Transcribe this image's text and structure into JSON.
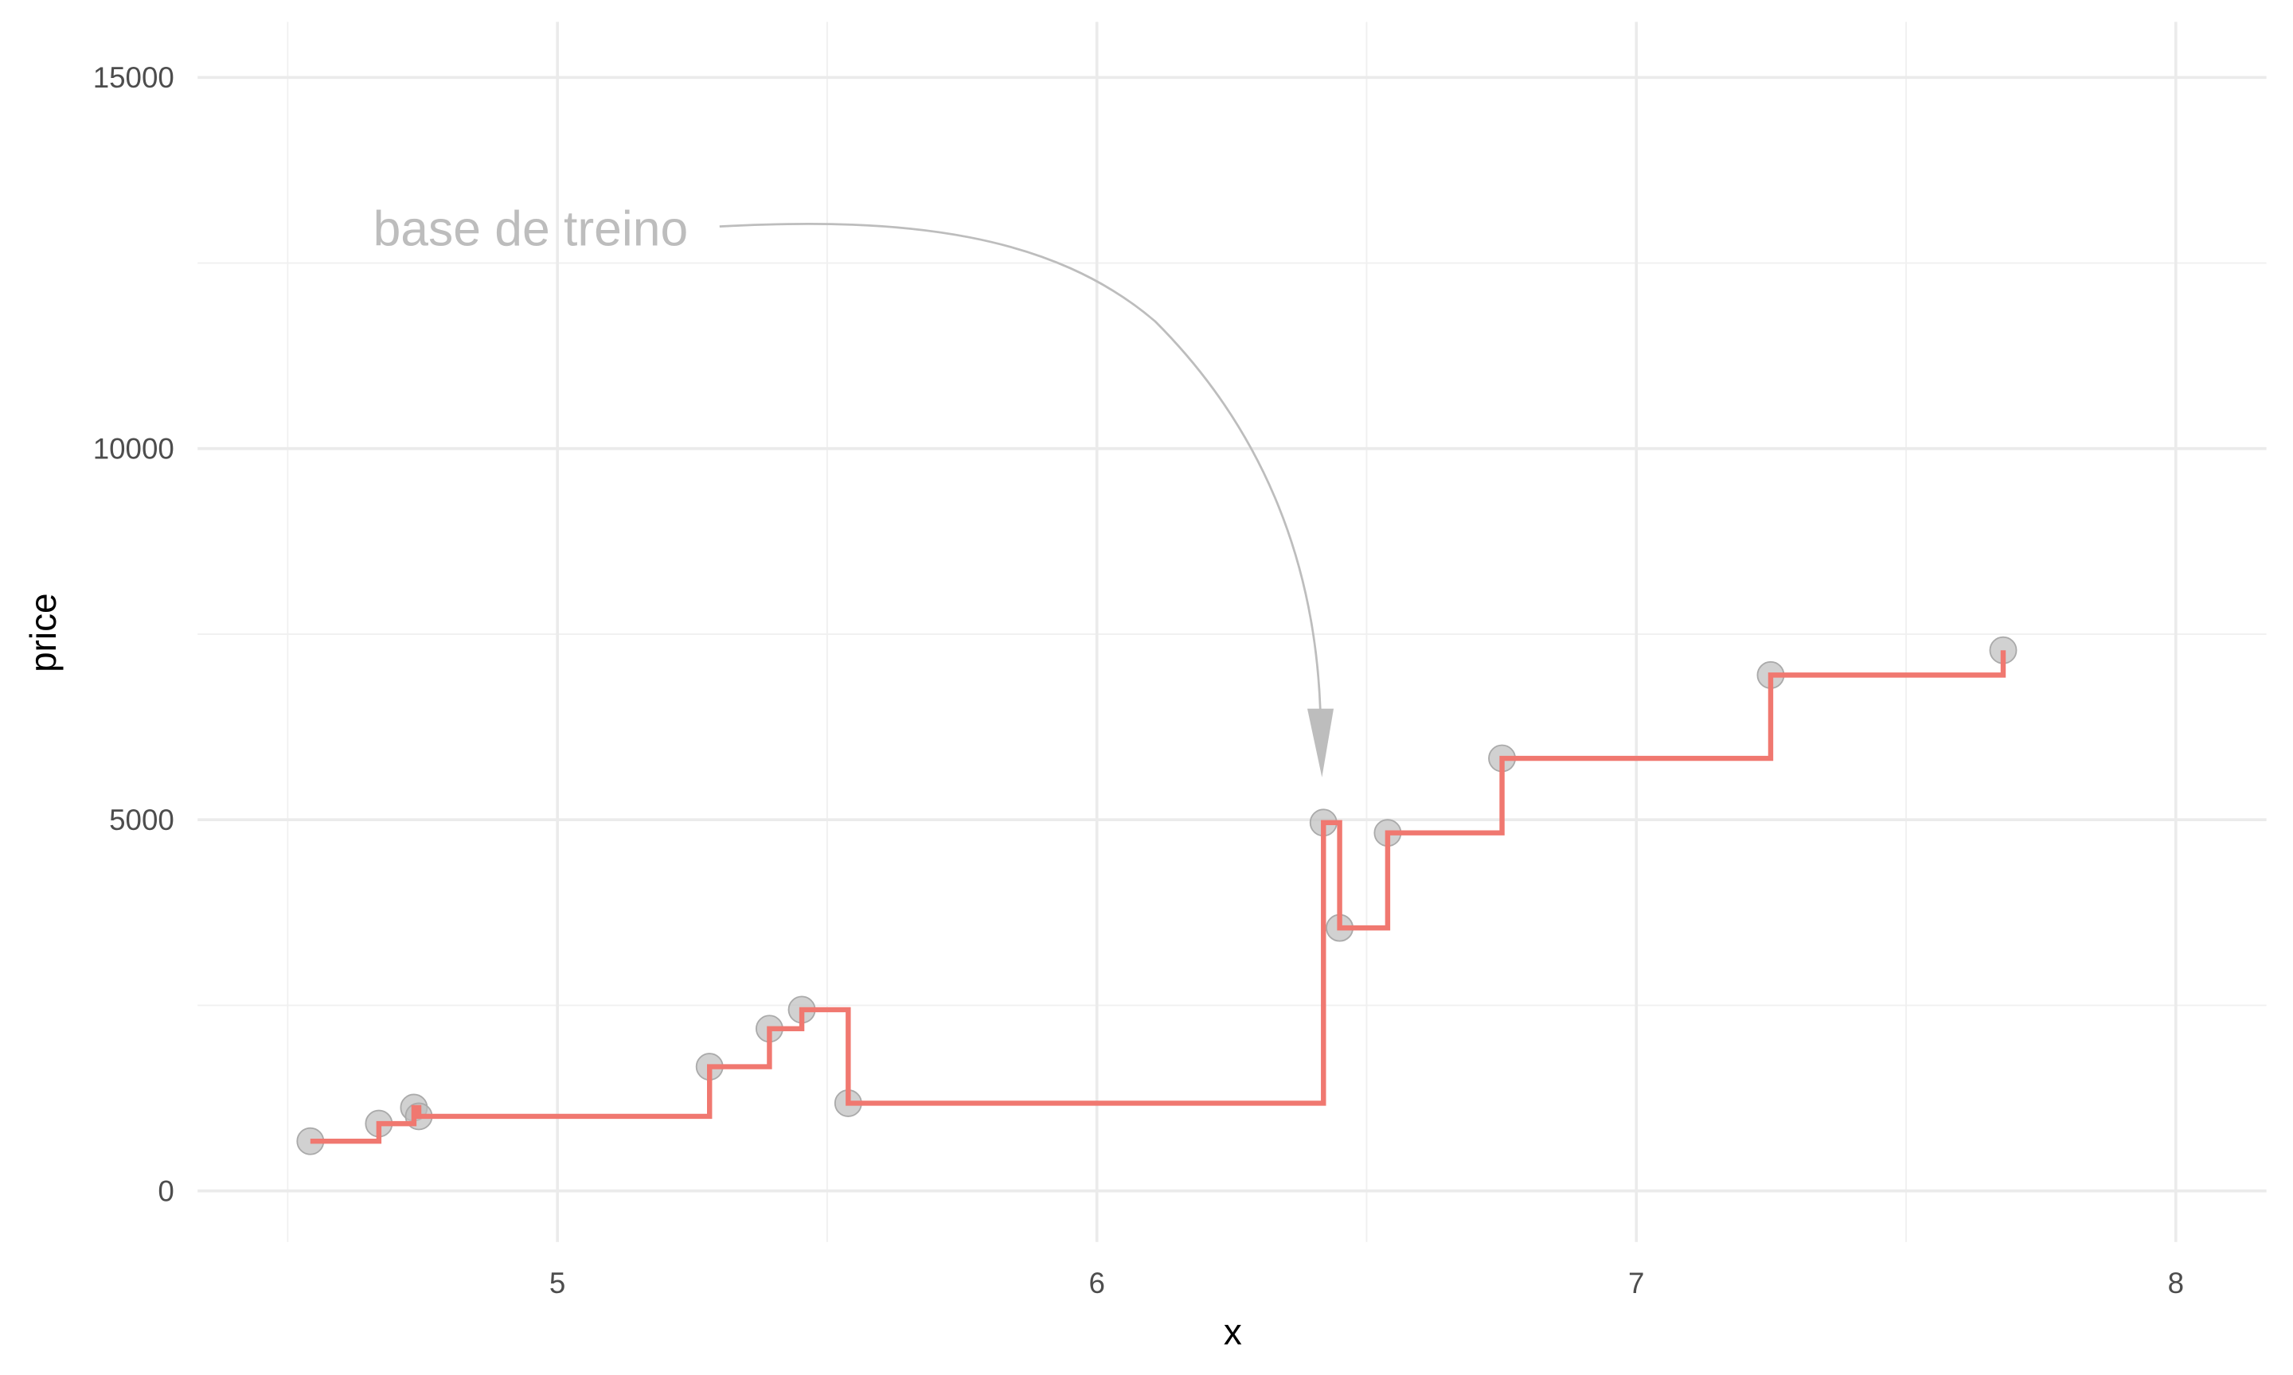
{
  "chart_data": {
    "type": "scatter",
    "x_label": "x",
    "y_label": "price",
    "annotation": "base de treino",
    "x": [
      4.542,
      4.669,
      4.734,
      4.743,
      5.282,
      5.393,
      5.453,
      5.539,
      6.42,
      6.45,
      6.539,
      6.751,
      7.249,
      7.68
    ],
    "values": [
      669,
      906,
      1122,
      1004,
      1673,
      2185,
      2441,
      1181,
      4961,
      3543,
      4823,
      5827,
      6949,
      7283
    ],
    "point_color": "#bdbdbd",
    "line_color": "#f07870",
    "line": "step",
    "xlim": [
      4.333,
      8.168
    ],
    "ylim": [
      -689,
      15748
    ],
    "xticks": [
      5,
      6,
      7,
      8
    ],
    "yticks": [
      0,
      5000,
      10000,
      15000
    ],
    "xminor": [
      4.5,
      5.5,
      6.5,
      7.5
    ],
    "yminor": [
      2500,
      7500,
      12500
    ],
    "grid": true
  }
}
